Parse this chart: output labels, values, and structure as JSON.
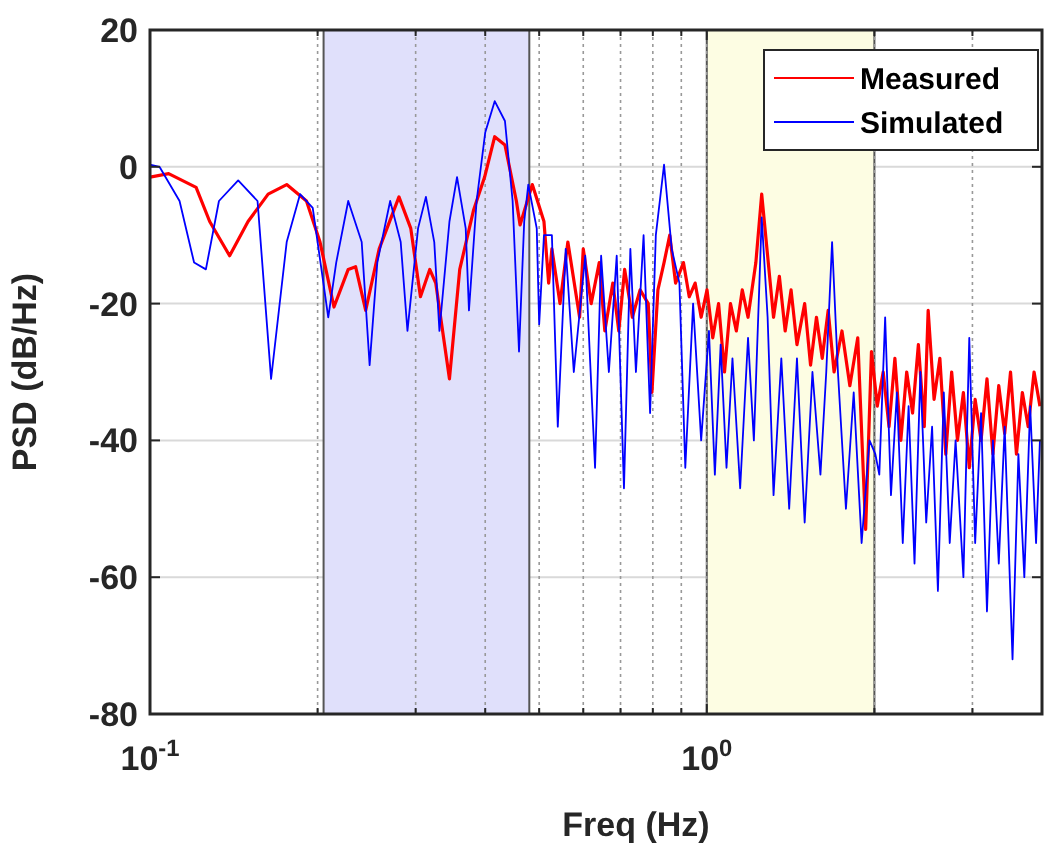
{
  "chart_data": {
    "type": "line",
    "xlabel": "Freq (Hz)",
    "ylabel": "PSD (dB/Hz)",
    "log": "x",
    "xlim": [
      0.1,
      4
    ],
    "ylim": [
      -80,
      20
    ],
    "xticks": [
      {
        "value": 0.1,
        "label": "10$^{-1}$"
      },
      {
        "value": 0.2,
        "label": null
      },
      {
        "value": 0.3,
        "label": null
      },
      {
        "value": 0.4,
        "label": null
      },
      {
        "value": 0.5,
        "label": null
      },
      {
        "value": 0.6,
        "label": null
      },
      {
        "value": 0.7,
        "label": null
      },
      {
        "value": 0.8,
        "label": null
      },
      {
        "value": 0.9,
        "label": null
      },
      {
        "value": 1,
        "label": "10$^{0}$"
      },
      {
        "value": 2,
        "label": null
      },
      {
        "value": 3,
        "label": null
      }
    ],
    "yticks": [
      -80,
      -60,
      -40,
      -20,
      0,
      20
    ],
    "grid": true,
    "legend": "top right",
    "line_style": "solid",
    "bands": [
      {
        "axis": "x",
        "from": 0.205,
        "to": 0.48,
        "color": "#e0e0fb"
      },
      {
        "axis": "x",
        "from": 1.0,
        "to": 2.0,
        "color": "#fdfde3"
      }
    ],
    "series": [
      {
        "name": "Measured",
        "color": "#ff0000",
        "x": [
          0.1,
          0.108,
          0.121,
          0.128,
          0.139,
          0.15,
          0.163,
          0.176,
          0.191,
          0.202,
          0.214,
          0.227,
          0.234,
          0.244,
          0.258,
          0.28,
          0.294,
          0.306,
          0.318,
          0.326,
          0.345,
          0.36,
          0.381,
          0.399,
          0.416,
          0.434,
          0.455,
          0.462,
          0.486,
          0.51,
          0.52,
          0.527,
          0.545,
          0.563,
          0.591,
          0.6,
          0.62,
          0.641,
          0.656,
          0.678,
          0.695,
          0.712,
          0.735,
          0.759,
          0.785,
          0.797,
          0.817,
          0.838,
          0.858,
          0.879,
          0.908,
          0.93,
          0.953,
          0.977,
          1.001,
          1.025,
          1.05,
          1.076,
          1.103,
          1.13,
          1.158,
          1.186,
          1.225,
          1.255,
          1.286,
          1.318,
          1.35,
          1.383,
          1.417,
          1.452,
          1.499,
          1.536,
          1.574,
          1.612,
          1.652,
          1.693,
          1.749,
          1.807,
          1.867,
          1.929,
          1.976,
          2.024,
          2.074,
          2.125,
          2.177,
          2.231,
          2.286,
          2.342,
          2.399,
          2.458,
          2.498,
          2.56,
          2.622,
          2.687,
          2.753,
          2.82,
          2.89,
          2.961,
          3.034,
          3.109,
          3.186,
          3.265,
          3.345,
          3.428,
          3.512,
          3.599,
          3.688,
          3.778,
          3.871,
          3.966
        ],
        "values": [
          -1.5,
          -1,
          -3,
          -8,
          -13,
          -8,
          -4,
          -2.6,
          -5,
          -11,
          -20.5,
          -15,
          -14.6,
          -21,
          -12,
          -4.4,
          -9,
          -19,
          -15,
          -17,
          -31,
          -15,
          -6.4,
          -1.5,
          4.4,
          3.2,
          -5,
          -8.5,
          -2.6,
          -8,
          -17,
          -12,
          -20,
          -11,
          -22,
          -12,
          -20,
          -14,
          -24,
          -17,
          -24,
          -15,
          -22,
          -18,
          -20,
          -33,
          -18,
          -14,
          -10,
          -17,
          -14,
          -19,
          -17,
          -22,
          -18,
          -25,
          -20,
          -30,
          -20,
          -24,
          -18,
          -22,
          -14,
          -4,
          -13,
          -22,
          -16,
          -24,
          -18,
          -26,
          -20,
          -29,
          -22,
          -28,
          -21,
          -30,
          -24,
          -32,
          -25,
          -53,
          -27,
          -35,
          -30,
          -38,
          -28,
          -40,
          -30,
          -36,
          -26,
          -38,
          -21,
          -34,
          -28,
          -42,
          -30,
          -40,
          -33,
          -44,
          -34,
          -40,
          -31,
          -42,
          -32,
          -39,
          -30,
          -42,
          -33,
          -38,
          -30,
          -35
        ]
      },
      {
        "name": "Simulated",
        "color": "#0000ff",
        "x": [
          0.1,
          0.104,
          0.113,
          0.12,
          0.126,
          0.133,
          0.144,
          0.156,
          0.165,
          0.176,
          0.186,
          0.196,
          0.209,
          0.216,
          0.227,
          0.24,
          0.248,
          0.256,
          0.27,
          0.282,
          0.29,
          0.303,
          0.313,
          0.324,
          0.331,
          0.345,
          0.356,
          0.369,
          0.374,
          0.386,
          0.4,
          0.416,
          0.434,
          0.448,
          0.46,
          0.47,
          0.478,
          0.495,
          0.5,
          0.51,
          0.527,
          0.54,
          0.558,
          0.577,
          0.605,
          0.63,
          0.646,
          0.667,
          0.689,
          0.71,
          0.729,
          0.746,
          0.77,
          0.791,
          0.81,
          0.838,
          0.865,
          0.893,
          0.915,
          0.945,
          0.977,
          1.009,
          1.034,
          1.059,
          1.085,
          1.112,
          1.148,
          1.186,
          1.215,
          1.255,
          1.286,
          1.318,
          1.361,
          1.406,
          1.452,
          1.499,
          1.548,
          1.6,
          1.639,
          1.679,
          1.72,
          1.778,
          1.836,
          1.897,
          1.96,
          2.008,
          2.041,
          2.091,
          2.142,
          2.195,
          2.249,
          2.304,
          2.361,
          2.419,
          2.478,
          2.539,
          2.601,
          2.665,
          2.731,
          2.798,
          2.89,
          2.961,
          3.034,
          3.109,
          3.186,
          3.265,
          3.345,
          3.428,
          3.541,
          3.628,
          3.718,
          3.809,
          3.903,
          3.966
        ],
        "values": [
          0.3,
          0,
          -5,
          -14,
          -15,
          -5,
          -2,
          -5,
          -31,
          -11,
          -4,
          -6,
          -22,
          -14,
          -5,
          -11,
          -29,
          -14,
          -5,
          -11,
          -24,
          -9,
          -4.4,
          -11,
          -24,
          -8,
          -1.5,
          -9,
          -21,
          -5,
          5,
          9.6,
          6.7,
          -5,
          -27,
          -8,
          -2.6,
          -9,
          -23,
          -10,
          -10,
          -38,
          -12,
          -30,
          -13,
          -44,
          -13,
          -30,
          -13,
          -47,
          -12,
          -30,
          -10,
          -36,
          -10,
          0.3,
          -12,
          -17,
          -44,
          -20,
          -40,
          -24,
          -45,
          -26,
          -44,
          -28,
          -47,
          -25,
          -40,
          -7.4,
          -22,
          -48,
          -28,
          -50,
          -28,
          -52,
          -30,
          -45,
          -30,
          -11,
          -30,
          -50,
          -33,
          -55,
          -40,
          -42,
          -45,
          -22,
          -48,
          -33,
          -55,
          -35,
          -58,
          -30,
          -52,
          -38,
          -62,
          -33,
          -55,
          -40,
          -60,
          -25,
          -55,
          -36,
          -65,
          -40,
          -58,
          -38,
          -72,
          -42,
          -60,
          -35,
          -55,
          -40
        ]
      }
    ]
  }
}
